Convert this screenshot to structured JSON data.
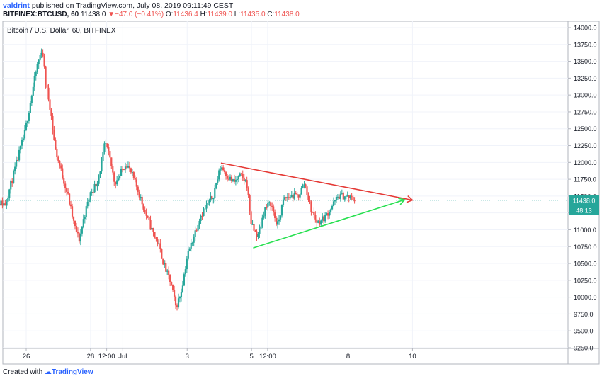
{
  "header": {
    "user": "valdrint",
    "published": "published on TradingView.com, July 08, 2019 09:11:49 CEST",
    "symbol": "BITFINEX:BTCUSD, 60",
    "last": "11438.0",
    "change": "▼−47.0 (−0.41%)",
    "o_label": "O:",
    "o_value": "11436.4",
    "h_label": "H:",
    "h_value": "11439.0",
    "l_label": "L:",
    "l_value": "11435.0",
    "c_label": "C:",
    "c_value": "11438.0"
  },
  "chart_data": {
    "type": "candlestick",
    "title": "Bitcoin / U.S. Dollar, 60, BITFINEX",
    "xlabel": "",
    "ylabel": "",
    "ylim": [
      9250,
      14000
    ],
    "y_ticks": [
      14000,
      13750,
      13500,
      13250,
      13000,
      12750,
      12500,
      12250,
      12000,
      11750,
      11500,
      11250,
      11000,
      10750,
      10500,
      10250,
      10000,
      9750,
      9500,
      9250
    ],
    "x_ticks": [
      {
        "label": "26",
        "t": 1.0
      },
      {
        "label": "28",
        "t": 3.0
      },
      {
        "label": "12:00",
        "t": 3.5
      },
      {
        "label": "Jul",
        "t": 4.0
      },
      {
        "label": "3",
        "t": 6.0
      },
      {
        "label": "5",
        "t": 8.0
      },
      {
        "label": "12:00",
        "t": 8.5
      },
      {
        "label": "8",
        "t": 11.0
      },
      {
        "label": "10",
        "t": 13.0
      }
    ],
    "path": [
      [
        0.0,
        11420
      ],
      [
        0.35,
        11380
      ],
      [
        0.55,
        11720
      ],
      [
        0.75,
        12080
      ],
      [
        0.95,
        12420
      ],
      [
        1.15,
        12950
      ],
      [
        1.35,
        13450
      ],
      [
        1.5,
        13700
      ],
      [
        1.6,
        13200
      ],
      [
        1.75,
        12800
      ],
      [
        1.9,
        12200
      ],
      [
        2.1,
        11850
      ],
      [
        2.3,
        11500
      ],
      [
        2.5,
        11050
      ],
      [
        2.65,
        10850
      ],
      [
        2.8,
        11200
      ],
      [
        3.0,
        11550
      ],
      [
        3.2,
        11700
      ],
      [
        3.35,
        12000
      ],
      [
        3.45,
        12300
      ],
      [
        3.6,
        12050
      ],
      [
        3.75,
        11700
      ],
      [
        3.9,
        11800
      ],
      [
        4.1,
        12000
      ],
      [
        4.3,
        11800
      ],
      [
        4.5,
        11550
      ],
      [
        4.7,
        11250
      ],
      [
        4.9,
        11000
      ],
      [
        5.1,
        10800
      ],
      [
        5.3,
        10450
      ],
      [
        5.5,
        10200
      ],
      [
        5.65,
        9850
      ],
      [
        5.8,
        10050
      ],
      [
        6.0,
        10600
      ],
      [
        6.2,
        10900
      ],
      [
        6.4,
        11200
      ],
      [
        6.6,
        11350
      ],
      [
        6.8,
        11500
      ],
      [
        7.05,
        11950
      ],
      [
        7.25,
        11800
      ],
      [
        7.45,
        11700
      ],
      [
        7.65,
        11800
      ],
      [
        7.85,
        11700
      ],
      [
        8.0,
        11050
      ],
      [
        8.2,
        10900
      ],
      [
        8.4,
        11300
      ],
      [
        8.6,
        11400
      ],
      [
        8.8,
        11050
      ],
      [
        9.0,
        11450
      ],
      [
        9.2,
        11500
      ],
      [
        9.45,
        11500
      ],
      [
        9.65,
        11700
      ],
      [
        9.85,
        11300
      ],
      [
        10.05,
        11100
      ],
      [
        10.3,
        11200
      ],
      [
        10.5,
        11350
      ],
      [
        10.7,
        11500
      ],
      [
        10.9,
        11500
      ],
      [
        11.2,
        11450
      ]
    ],
    "last_price": 11438.0,
    "last_price_label": "11438.0",
    "countdown_label": "48:13",
    "trendlines": [
      {
        "color": "#e53935",
        "from": [
          7.05,
          11990
        ],
        "to": [
          13.0,
          11440
        ],
        "arrow": true
      },
      {
        "color": "#26e04f",
        "from": [
          8.05,
          10730
        ],
        "to": [
          12.75,
          11445
        ],
        "arrow": true
      }
    ],
    "colors": {
      "up": "#26a69a",
      "down": "#ef5350",
      "price_line": "#26a69a",
      "price_label_bg": "#26a69a",
      "countdown_bg": "#26a69a"
    }
  },
  "footer": {
    "created_with": "Created with",
    "brand": "TradingView"
  }
}
